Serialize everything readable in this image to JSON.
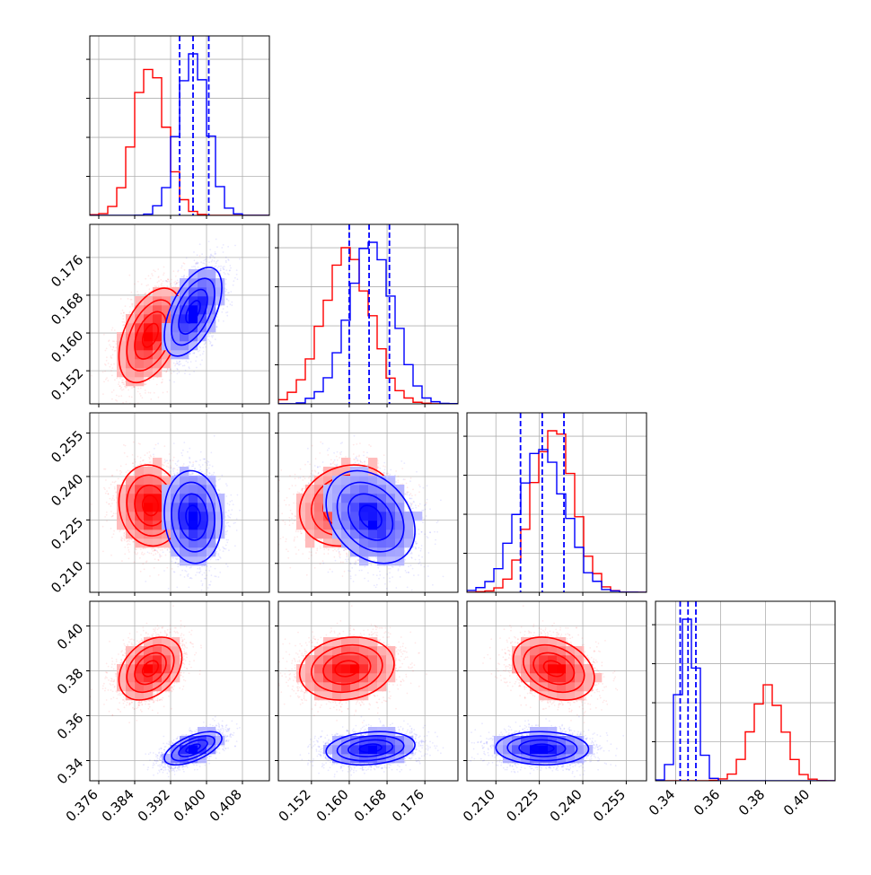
{
  "chart_data": {
    "type": "corner",
    "title": "",
    "parameters": [
      {
        "range": [
          0.374,
          0.414
        ],
        "ticks": [
          0.376,
          0.384,
          0.392,
          0.4,
          0.408
        ],
        "tick_labels": [
          "0.376",
          "0.384",
          "0.392",
          "0.400",
          "0.408"
        ]
      },
      {
        "range": [
          0.145,
          0.183
        ],
        "ticks": [
          0.152,
          0.16,
          0.168,
          0.176
        ],
        "tick_labels": [
          "0.152",
          "0.160",
          "0.168",
          "0.176"
        ]
      },
      {
        "range": [
          0.2,
          0.262
        ],
        "ticks": [
          0.21,
          0.225,
          0.24,
          0.255
        ],
        "tick_labels": [
          "0.210",
          "0.225",
          "0.240",
          "0.255"
        ]
      },
      {
        "range": [
          0.331,
          0.411
        ],
        "ticks": [
          0.34,
          0.36,
          0.38,
          0.4
        ],
        "tick_labels": [
          "0.34",
          "0.36",
          "0.38",
          "0.40"
        ]
      }
    ],
    "series": [
      {
        "color": "#ff0000",
        "mean": [
          0.3875,
          0.1595,
          0.23,
          0.381
        ],
        "sd": [
          0.0035,
          0.005,
          0.007,
          0.007
        ],
        "corr": [
          [
            1,
            0.45,
            -0.08,
            0.35
          ],
          [
            0.45,
            1,
            0.15,
            0.15
          ],
          [
            -0.08,
            0.15,
            1,
            -0.3
          ],
          [
            0.35,
            0.15,
            -0.3,
            1
          ]
        ],
        "quantiles": null
      },
      {
        "color": "#0000ff",
        "mean": [
          0.397,
          0.1645,
          0.226,
          0.3455
        ],
        "sd": [
          0.0032,
          0.0047,
          0.008,
          0.0037
        ],
        "corr": [
          [
            1,
            0.55,
            -0.08,
            0.6
          ],
          [
            0.55,
            1,
            -0.3,
            0.2
          ],
          [
            -0.08,
            -0.3,
            1,
            -0.05
          ],
          [
            0.6,
            0.2,
            -0.05,
            1
          ]
        ],
        "quantiles": [
          [
            0.394,
            0.397,
            0.4005
          ],
          [
            0.16,
            0.1642,
            0.1685
          ],
          [
            0.2185,
            0.226,
            0.2335
          ],
          [
            0.342,
            0.3455,
            0.349
          ]
        ]
      }
    ],
    "grid": true,
    "legend": "none"
  }
}
